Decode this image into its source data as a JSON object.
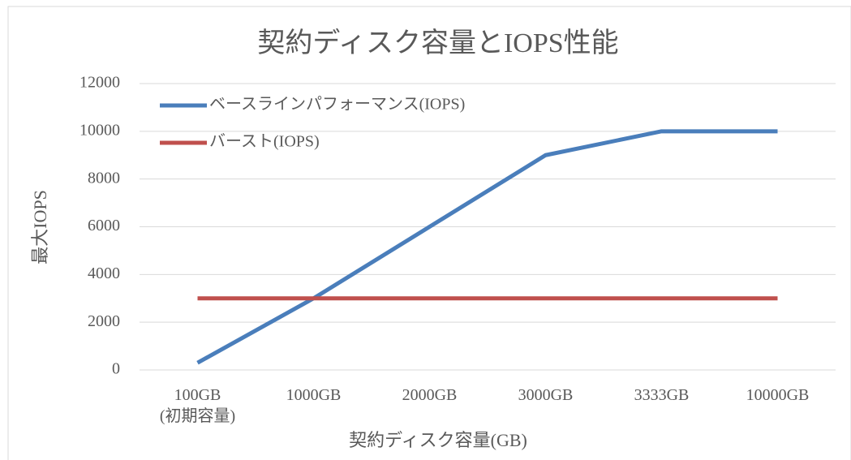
{
  "chart_data": {
    "type": "line",
    "title": "契約ディスク容量とIOPS性能",
    "x_label": "契約ディスク容量(GB)",
    "y_label": "最大IOPS",
    "categories": [
      "100GB\n(初期容量)",
      "1000GB",
      "2000GB",
      "3000GB",
      "3333GB",
      "10000GB"
    ],
    "series": [
      {
        "name": "ベースラインパフォーマンス(IOPS)",
        "color": "#4a7ebb",
        "values": [
          300,
          3000,
          6000,
          9000,
          10000,
          10000
        ]
      },
      {
        "name": "バースト(IOPS)",
        "color": "#c0504d",
        "values": [
          3000,
          3000,
          3000,
          3000,
          3000,
          3000
        ]
      }
    ],
    "ylim": [
      0,
      12000
    ],
    "yticks": [
      0,
      2000,
      4000,
      6000,
      8000,
      10000,
      12000
    ],
    "grid": true,
    "legend": "top-left"
  }
}
